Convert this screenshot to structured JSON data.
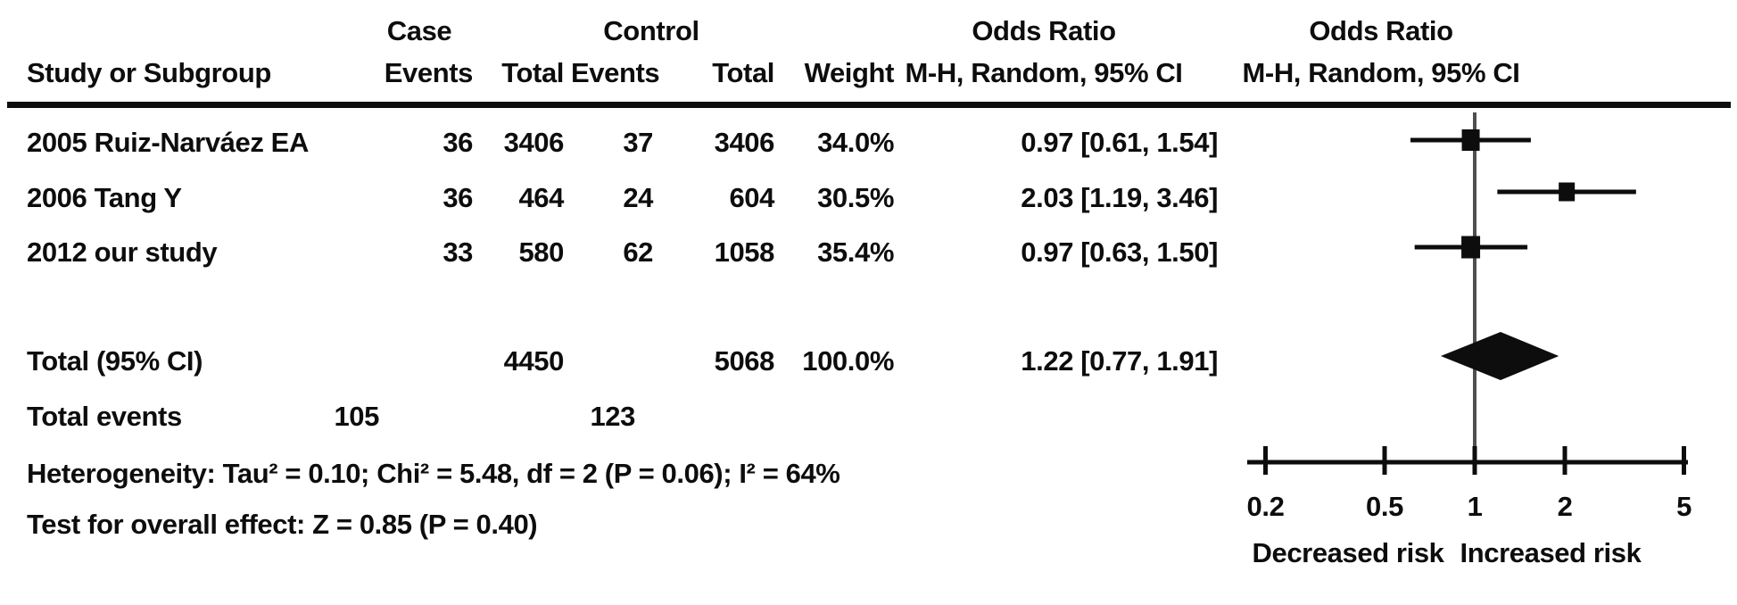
{
  "table": {
    "headers": {
      "case_group": "Case",
      "control_group": "Control",
      "or_column": "Odds Ratio",
      "or_plot": "Odds Ratio",
      "study": "Study or Subgroup",
      "case_events": "Events",
      "case_total": "Total",
      "control_events": "Events",
      "control_total": "Total",
      "weight": "Weight",
      "mh_column": "M-H, Random, 95% CI",
      "mh_plot": "M-H, Random, 95% CI"
    },
    "rows": [
      {
        "study": "2005 Ruiz-Narváez EA",
        "case_events": "36",
        "case_total": "3406",
        "control_events": "37",
        "control_total": "3406",
        "weight": "34.0%",
        "or_ci": "0.97 [0.61, 1.54]"
      },
      {
        "study": "2006 Tang Y",
        "case_events": "36",
        "case_total": "464",
        "control_events": "24",
        "control_total": "604",
        "weight": "30.5%",
        "or_ci": "2.03 [1.19, 3.46]"
      },
      {
        "study": "2012 our study",
        "case_events": "33",
        "case_total": "580",
        "control_events": "62",
        "control_total": "1058",
        "weight": "35.4%",
        "or_ci": "0.97 [0.63, 1.50]"
      }
    ],
    "total_row": {
      "label": "Total (95% CI)",
      "case_total": "4450",
      "control_total": "5068",
      "weight": "100.0%",
      "or_ci": "1.22 [0.77, 1.91]"
    },
    "total_events_row": {
      "label": "Total events",
      "case_events": "105",
      "control_events": "123"
    },
    "heterogeneity": "Heterogeneity: Tau² = 0.10; Chi² = 5.48, df = 2 (P = 0.06); I² = 64%",
    "overall_effect": "Test for overall effect: Z = 0.85 (P = 0.40)"
  },
  "chart_data": {
    "type": "forest",
    "x_scale": "log",
    "effect_measure": "Odds Ratio, M-H, Random, 95% CI",
    "axis_ticks": [
      0.2,
      0.5,
      1,
      2,
      5
    ],
    "axis_tick_labels": [
      "0.2",
      "0.5",
      "1",
      "2",
      "5"
    ],
    "xlim": [
      0.17,
      5.6
    ],
    "no_effect_value": 1,
    "left_label": "Decreased risk",
    "right_label": "Increased risk",
    "studies": [
      {
        "name": "2005 Ruiz-Narváez EA",
        "or": 0.97,
        "ci_low": 0.61,
        "ci_high": 1.54,
        "weight_pct": 34.0
      },
      {
        "name": "2006 Tang Y",
        "or": 2.03,
        "ci_low": 1.19,
        "ci_high": 3.46,
        "weight_pct": 30.5
      },
      {
        "name": "2012 our study",
        "or": 0.97,
        "ci_low": 0.63,
        "ci_high": 1.5,
        "weight_pct": 35.4
      }
    ],
    "total": {
      "label": "Total (95% CI)",
      "or": 1.22,
      "ci_low": 0.77,
      "ci_high": 1.91
    }
  },
  "colors": {
    "text": "#0d0d0d",
    "marker": "#0d0d0d",
    "no_effect_line": "#4f4f4f",
    "axis": "#0d0d0d"
  }
}
